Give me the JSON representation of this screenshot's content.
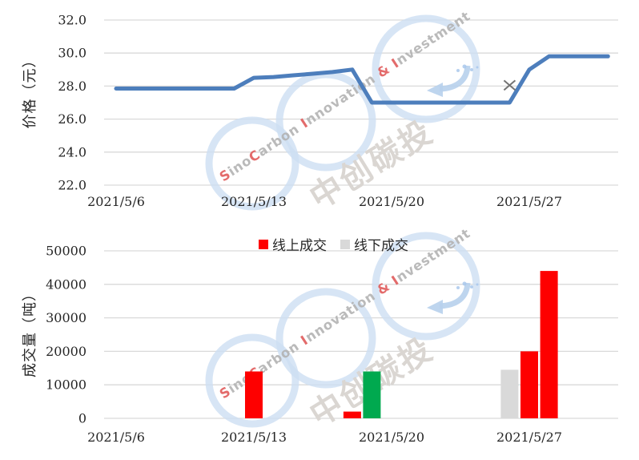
{
  "page": {
    "background": "#ffffff",
    "text_color": "#262626",
    "grid_color": "#d9d9d9"
  },
  "watermark": {
    "text_en": "SinoCarbon Innovation & Investment",
    "text_cn": "中创碳投",
    "red_letters": "SCI&",
    "ring_color": "#cddff2",
    "swoosh_color": "#b7d0ec",
    "sparkle_color": "#a9c8ec",
    "en_gray": "#b3b3b3",
    "en_red": "#e05c5c",
    "cn_color": "#dad6d2"
  },
  "chart_data": [
    {
      "type": "line",
      "title": "",
      "ylabel": "价格（元）",
      "xlabel": "",
      "ylim": [
        22,
        32
      ],
      "yticks": [
        22,
        24,
        26,
        28,
        30,
        32
      ],
      "ytick_labels": [
        "22.0",
        "24.0",
        "26.0",
        "28.0",
        "30.0",
        "32.0"
      ],
      "xtick_labels": [
        "2021/5/6",
        "2021/5/13",
        "2021/5/20",
        "2021/5/27"
      ],
      "grid": true,
      "line_color": "#4d7ebc",
      "series": [
        {
          "color": "#4d7ebc",
          "points": [
            [
              "2021/5/6",
              27.85
            ],
            [
              "2021/5/7",
              27.85
            ],
            [
              "2021/5/8",
              27.85
            ],
            [
              "2021/5/9",
              27.85
            ],
            [
              "2021/5/10",
              27.85
            ],
            [
              "2021/5/11",
              27.85
            ],
            [
              "2021/5/12",
              27.85
            ],
            [
              "2021/5/13",
              28.5
            ],
            [
              "2021/5/14",
              28.55
            ],
            [
              "2021/5/15",
              28.65
            ],
            [
              "2021/5/16",
              28.75
            ],
            [
              "2021/5/17",
              28.85
            ],
            [
              "2021/5/18",
              29.0
            ],
            [
              "2021/5/19",
              27.0
            ],
            [
              "2021/5/20",
              27.0
            ],
            [
              "2021/5/21",
              27.0
            ],
            [
              "2021/5/22",
              27.0
            ],
            [
              "2021/5/23",
              27.0
            ],
            [
              "2021/5/24",
              27.0
            ],
            [
              "2021/5/25",
              27.0
            ],
            [
              "2021/5/26",
              27.0
            ],
            [
              "2021/5/27",
              29.0
            ],
            [
              "2021/5/28",
              29.8
            ],
            [
              "2021/5/29",
              29.8
            ],
            [
              "2021/5/30",
              29.8
            ],
            [
              "2021/5/31",
              29.8
            ]
          ]
        }
      ],
      "point_markers": [
        {
          "shape": "x",
          "color": "#737373",
          "date": "2021/5/26",
          "value": 28.05
        }
      ]
    },
    {
      "type": "bar",
      "title": "",
      "ylabel": "成交量（吨）",
      "xlabel": "",
      "ylim": [
        0,
        50000
      ],
      "yticks": [
        0,
        10000,
        20000,
        30000,
        40000,
        50000
      ],
      "ytick_labels": [
        "0",
        "10000",
        "20000",
        "30000",
        "40000",
        "50000"
      ],
      "xtick_labels": [
        "2021/5/6",
        "2021/5/13",
        "2021/5/20",
        "2021/5/27"
      ],
      "grid": true,
      "legend_position": "top-center",
      "legend": [
        {
          "label": "线上成交",
          "color": "#fe0000"
        },
        {
          "label": "线下成交",
          "color": "#d9d9d9"
        }
      ],
      "bars": [
        {
          "date": "2021/5/13",
          "value": 14000,
          "color": "#fe0000",
          "legend": "线上成交"
        },
        {
          "date": "2021/5/18",
          "value": 2000,
          "color": "#fe0000",
          "legend": "线上成交"
        },
        {
          "date": "2021/5/19",
          "value": 14000,
          "color": "#00a94f",
          "legend": ""
        },
        {
          "date": "2021/5/26",
          "value": 14500,
          "color": "#d9d9d9",
          "legend": "线下成交"
        },
        {
          "date": "2021/5/27",
          "value": 20000,
          "color": "#fe0000",
          "legend": "线上成交"
        },
        {
          "date": "2021/5/28",
          "value": 44000,
          "color": "#fe0000",
          "legend": "线上成交"
        }
      ]
    }
  ]
}
